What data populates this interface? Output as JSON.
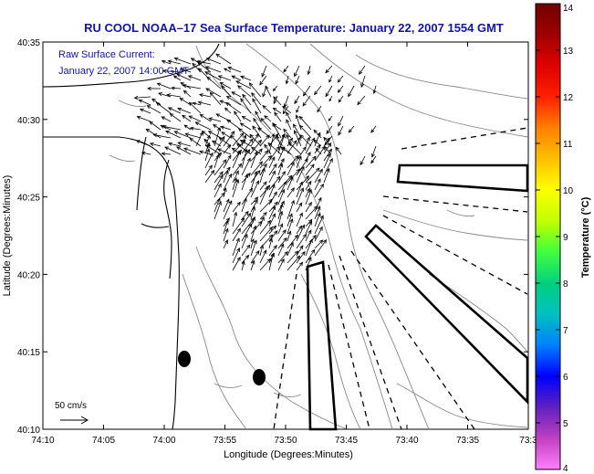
{
  "title": "RU COOL  NOAA–17  Sea Surface Temperature:  January 22, 2007 1554 GMT",
  "inset": {
    "line1": "Raw Surface Current:",
    "line2": "January 22, 2007 14:00 GMT"
  },
  "x_axis": {
    "label": "Longitude (Degrees:Minutes)",
    "ticks": [
      "74:10",
      "74:05",
      "74:00",
      "73:55",
      "73:50",
      "73:45",
      "73:40",
      "73:35",
      "73:3"
    ]
  },
  "y_axis": {
    "label": "Latitude (Degrees:Minutes)",
    "ticks": [
      "40:35",
      "40:30",
      "40:25",
      "40:20",
      "40:15",
      "40:10"
    ]
  },
  "colorbar": {
    "label": "Temperature (°C)",
    "min": 4,
    "max": 14,
    "ticks": [
      "14",
      "13",
      "12",
      "11",
      "10",
      "9",
      "8",
      "7",
      "6",
      "5",
      "4"
    ],
    "colors": [
      "#ff7fff",
      "#c040c0",
      "#6020c0",
      "#0000ff",
      "#0080ff",
      "#00c0c0",
      "#00d080",
      "#40ff40",
      "#c0ff00",
      "#ffff00",
      "#ffc000",
      "#ff8000",
      "#ff2000",
      "#e00000",
      "#a00000",
      "#700000"
    ]
  },
  "scale_arrow": {
    "label": "50 cm/s"
  },
  "colors": {
    "title": "#1414a0",
    "coast": "#000000",
    "bathymetry": "#888888"
  }
}
